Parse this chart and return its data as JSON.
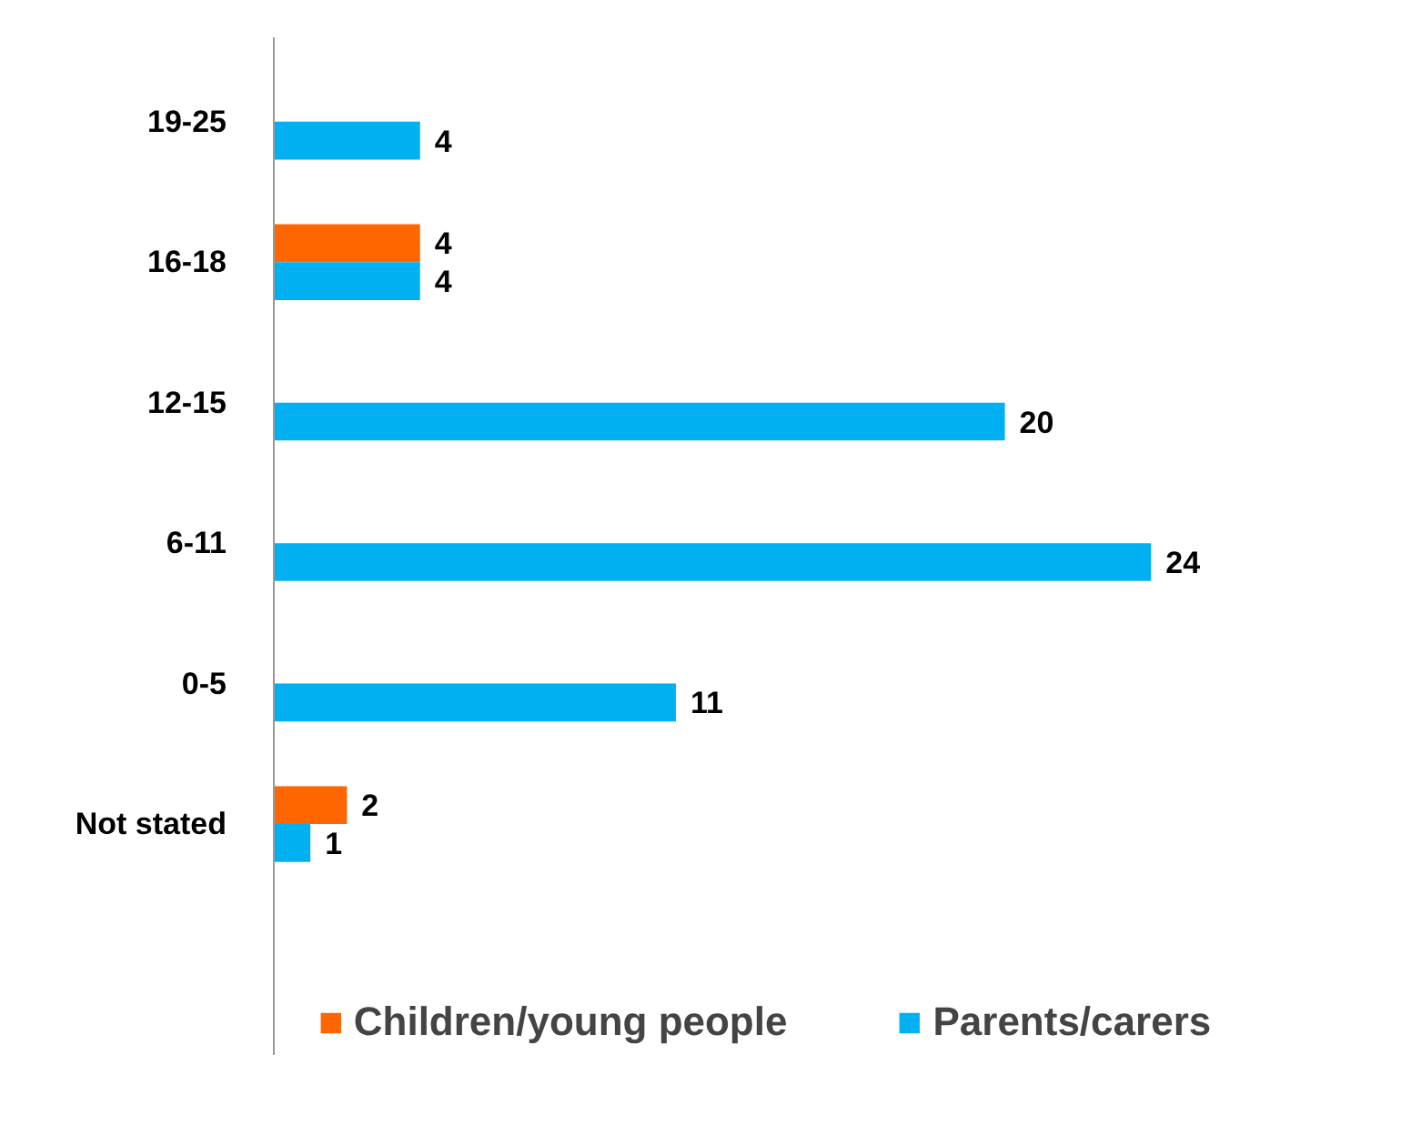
{
  "chart_data": {
    "type": "bar",
    "orientation": "horizontal",
    "categories": [
      "19-25",
      "16-18",
      "12-15",
      "6-11",
      "0-5",
      "Not stated"
    ],
    "series": [
      {
        "name": "Children/young people",
        "color": "#ff6600",
        "values": [
          null,
          4,
          null,
          null,
          null,
          2
        ]
      },
      {
        "name": "Parents/carers",
        "color": "#00b0f0",
        "values": [
          4,
          4,
          20,
          24,
          11,
          1
        ]
      }
    ],
    "data_labels": true,
    "legend": "bottom",
    "grid": false
  }
}
